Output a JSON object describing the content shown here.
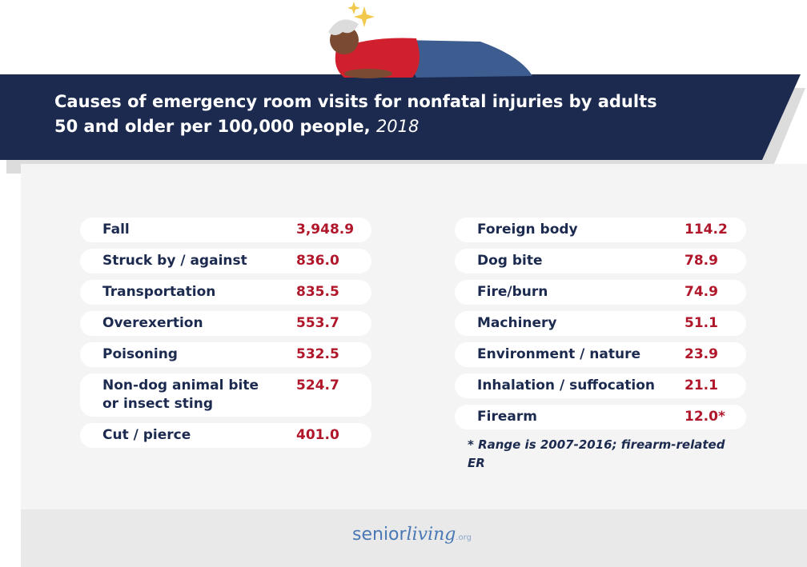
{
  "header": {
    "title": "Causes of emergency room visits for nonfatal injuries by adults 50 and older per 100,000 people,",
    "title_year": "2018"
  },
  "table": {
    "left": [
      {
        "cause": "Fall",
        "value": "3,948.9"
      },
      {
        "cause": "Struck by / against",
        "value": "836.0"
      },
      {
        "cause": "Transportation",
        "value": "835.5"
      },
      {
        "cause": "Overexertion",
        "value": "553.7"
      },
      {
        "cause": "Poisoning",
        "value": "532.5"
      },
      {
        "cause": "Non-dog animal bite or insect sting",
        "value": "524.7"
      },
      {
        "cause": "Cut / pierce",
        "value": "401.0"
      }
    ],
    "right": [
      {
        "cause": "Foreign body",
        "value": "114.2"
      },
      {
        "cause": "Dog bite",
        "value": "78.9"
      },
      {
        "cause": "Fire/burn",
        "value": "74.9"
      },
      {
        "cause": "Machinery",
        "value": "51.1"
      },
      {
        "cause": "Environment / nature",
        "value": "23.9"
      },
      {
        "cause": "Inhalation / suffocation",
        "value": "21.1"
      },
      {
        "cause": "Firearm",
        "value": "12.0*"
      }
    ]
  },
  "footnote": "* Range is 2007-2016; firearm-related ER",
  "logo": {
    "main": "senior",
    "script": "living",
    "suffix": ".org"
  }
}
